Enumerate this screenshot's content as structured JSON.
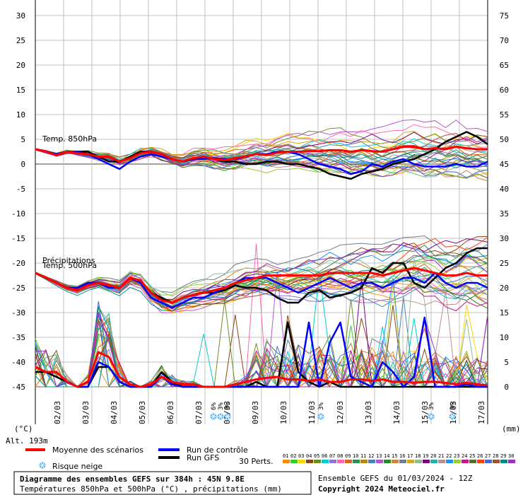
{
  "chart_data": {
    "type": "line",
    "title": "Diagramme des ensembles GEFS sur 384h : 45N 9.8E",
    "subtitle": "Températures 850hPa et 500hPa (°C) , précipitations (mm)",
    "left_axis": {
      "unit": "(°C)",
      "ticks": [
        "30",
        "25",
        "20",
        "15",
        "10",
        "5",
        "0",
        "-5",
        "-10",
        "-15",
        "-20",
        "-25",
        "-30",
        "-35",
        "-40",
        "-45"
      ],
      "ylim": [
        -45,
        30
      ]
    },
    "right_axis": {
      "unit": "(mm)",
      "ticks": [
        "75",
        "70",
        "65",
        "60",
        "55",
        "50",
        "45",
        "40",
        "35",
        "30",
        "25",
        "20",
        "15",
        "10",
        "5",
        "0"
      ],
      "ylim": [
        0,
        75
      ]
    },
    "x_axis": {
      "dates": [
        "02/03",
        "03/03",
        "04/03",
        "05/03",
        "06/03",
        "07/03",
        "08/03",
        "09/03",
        "10/03",
        "11/03",
        "12/03",
        "13/03",
        "14/03",
        "15/03",
        "16/03",
        "17/03"
      ]
    },
    "altitude": "Alt. 193m",
    "panel_labels": {
      "t850": "Temp. 850hPa",
      "t500": "Temp. 500hPa",
      "precip": "Précipitations"
    },
    "snow_marks": [
      {
        "date_index": 6.3,
        "labels": [
          "6%",
          "3%",
          "3%"
        ]
      },
      {
        "date_index": 10.1,
        "labels": [
          "3%"
        ]
      },
      {
        "date_index": 14.0,
        "labels": [
          "3%"
        ]
      },
      {
        "date_index": 14.75,
        "labels": [
          "3%"
        ]
      }
    ],
    "series": [
      {
        "name": "Moyenne des scénarios",
        "color": "#ff0000",
        "t850": [
          3,
          2.5,
          1.8,
          2.5,
          2.2,
          2,
          1.5,
          1.5,
          0.5,
          1.2,
          2.2,
          2.5,
          2,
          1,
          0.5,
          1.2,
          1.5,
          1,
          0.8,
          1.2,
          1.6,
          2,
          1.8,
          2.3,
          2.5,
          2.5,
          2.6,
          2.6,
          2.8,
          2.8,
          2.5,
          2.8,
          2.6,
          2.5,
          3,
          3.5,
          3.5,
          3,
          3.2,
          3,
          3.5,
          3.2,
          3,
          3
        ],
        "t500": [
          -22,
          -23,
          -24,
          -25,
          -25.5,
          -24.5,
          -24,
          -24.5,
          -25,
          -23,
          -23.5,
          -26,
          -27.5,
          -28,
          -27,
          -26.5,
          -26,
          -25.5,
          -25,
          -24,
          -23.5,
          -23,
          -22.5,
          -22.5,
          -22.5,
          -22.5,
          -22.5,
          -22.5,
          -22,
          -22,
          -22,
          -22,
          -22,
          -22.5,
          -22,
          -21.5,
          -21,
          -21.5,
          -22,
          -22.5,
          -22.5,
          -22,
          -22.5,
          -22.5
        ],
        "precip": [
          4,
          3,
          3,
          1,
          0,
          1,
          7,
          6,
          2,
          0.5,
          0,
          0.5,
          2,
          1,
          0.5,
          0.5,
          0,
          0,
          0,
          0.5,
          1,
          1.5,
          1.8,
          2,
          1.5,
          1.5,
          1.2,
          1.5,
          1,
          1,
          1.5,
          1.5,
          1.2,
          1.5,
          1,
          1,
          0.8,
          1,
          1,
          0.8,
          0.5,
          0.8,
          0.5,
          0.3
        ]
      },
      {
        "name": "Run de contrôle",
        "color": "#0000ff",
        "t850": [
          3,
          2.5,
          2,
          2.5,
          2.5,
          2,
          1,
          0,
          -1,
          0.5,
          1.5,
          2,
          1.5,
          1,
          0.5,
          1,
          1,
          1.2,
          1,
          1,
          1.5,
          2,
          2,
          2.5,
          2.5,
          2,
          1,
          0,
          -0.5,
          -1,
          -2,
          -1.5,
          0,
          -0.5,
          0.5,
          1,
          0,
          -0.5,
          -0.5,
          -0.5,
          0,
          -0.5,
          -0.5,
          0.5
        ],
        "t500": [
          -22,
          -23,
          -24,
          -25,
          -25,
          -24,
          -24,
          -25,
          -25,
          -23,
          -24,
          -27,
          -28,
          -29,
          -28,
          -27,
          -27,
          -26,
          -25,
          -24,
          -23,
          -23,
          -23,
          -24,
          -25,
          -26,
          -25,
          -24,
          -23,
          -24,
          -25,
          -24,
          -24,
          -25,
          -24,
          -23,
          -23,
          -24,
          -22,
          -24,
          -25,
          -24,
          -24,
          -25
        ],
        "precip": [
          4,
          3,
          3,
          1,
          0,
          0,
          5,
          4,
          1,
          0,
          0,
          0,
          2,
          0.5,
          0,
          0,
          0,
          0,
          0,
          0,
          0,
          0,
          0,
          0,
          0,
          0,
          13,
          0,
          9,
          13,
          2,
          1,
          0,
          5,
          3,
          0,
          2,
          14,
          0,
          0,
          0,
          0.5,
          0,
          0
        ]
      },
      {
        "name": "Run GFS",
        "color": "#000000",
        "t850": [
          3,
          2.5,
          2,
          2.5,
          2.5,
          2.5,
          1.5,
          0.5,
          0.5,
          1.5,
          2.5,
          2.5,
          2,
          1,
          0.5,
          1,
          1.5,
          1,
          0.5,
          0.5,
          0,
          0,
          0.5,
          0.5,
          0,
          0,
          -0.5,
          -1,
          -2,
          -2.5,
          -3,
          -2,
          -1.5,
          -1,
          0,
          0.5,
          1,
          2,
          3,
          4.5,
          5.5,
          6.5,
          5.5,
          4
        ],
        "t500": [
          -22,
          -23,
          -24,
          -25,
          -25,
          -24,
          -24,
          -24.5,
          -25,
          -23,
          -23.5,
          -26,
          -27,
          -28,
          -27,
          -26.5,
          -26,
          -26,
          -25.5,
          -24.5,
          -25,
          -25,
          -25.5,
          -27,
          -28,
          -28,
          -26,
          -25.5,
          -27,
          -26.5,
          -26,
          -25,
          -21,
          -22,
          -20,
          -20,
          -24,
          -25,
          -23,
          -21,
          -20,
          -18,
          -17,
          -17
        ],
        "precip": [
          3,
          3,
          2,
          1,
          0,
          0,
          4,
          4,
          1,
          0,
          0,
          0,
          3,
          1,
          0,
          0,
          0,
          0,
          0,
          0,
          0,
          1,
          0,
          0,
          13,
          3,
          1,
          0,
          1,
          0,
          0,
          0,
          0,
          0,
          0,
          0,
          0,
          0,
          0,
          0,
          0,
          0,
          0,
          0
        ]
      }
    ],
    "members_count": 30,
    "member_colors": [
      "#ff8c00",
      "#32cd32",
      "#ffd700",
      "#8b4513",
      "#6b8e23",
      "#00ced1",
      "#9370db",
      "#ff69b4",
      "#d2691e",
      "#2e8b57",
      "#b8860b",
      "#4682b4",
      "#ba55d3",
      "#228b22",
      "#cd853f",
      "#708090",
      "#daa520",
      "#8fbc8f",
      "#800080",
      "#20b2aa",
      "#bc8f8f",
      "#1e90ff",
      "#9acd32",
      "#c71585",
      "#556b2f",
      "#ff4500",
      "#4169e1",
      "#a0522d",
      "#008b8b",
      "#9932cc"
    ]
  },
  "legend": {
    "mean": "Moyenne des scénarios",
    "control": "Run de contrôle",
    "gfs": "Run GFS",
    "snow_risk": "Risque neige",
    "perts": "30 Perts.",
    "member_numbers": [
      "01",
      "02",
      "03",
      "04",
      "05",
      "06",
      "07",
      "08",
      "09",
      "10",
      "11",
      "12",
      "13",
      "14",
      "15",
      "16",
      "17",
      "18",
      "19",
      "20",
      "21",
      "22",
      "23",
      "24",
      "25",
      "26",
      "27",
      "28",
      "29",
      "30"
    ]
  },
  "footer": {
    "title": "Diagramme des ensembles GEFS sur 384h : 45N 9.8E",
    "subtitle": "Températures 850hPa et 500hPa (°C) , précipitations (mm)",
    "run": "Ensemble GEFS du 01/03/2024 - 12Z",
    "copyright": "Copyright 2024 Meteociel.fr"
  },
  "colors": {
    "grid": "#c0c0c0",
    "zero_line": "#a0a0a0",
    "snow": "#5ab4f0"
  }
}
